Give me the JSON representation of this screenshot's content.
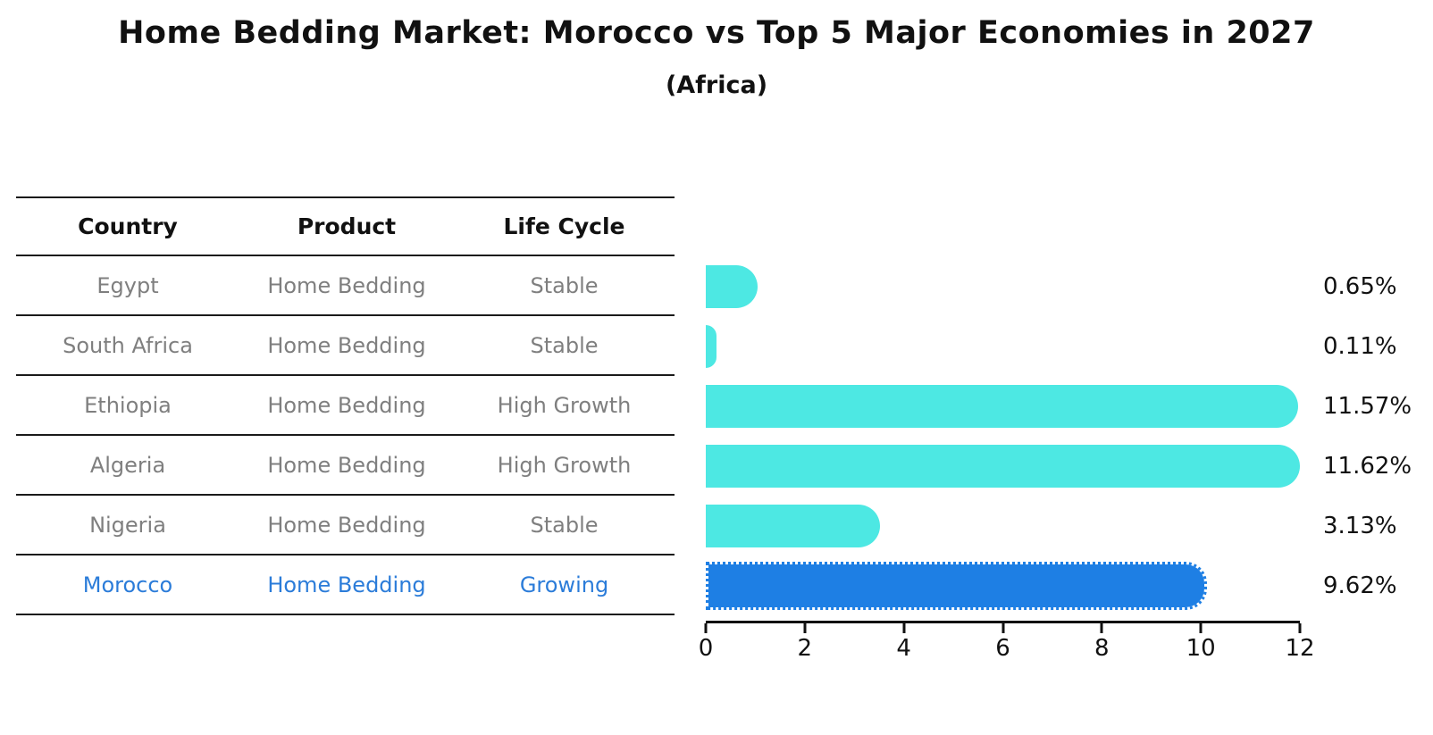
{
  "title": "Home Bedding Market: Morocco vs Top 5 Major Economies in 2027",
  "subtitle": "(Africa)",
  "table": {
    "headers": {
      "country": "Country",
      "product": "Product",
      "life_cycle": "Life Cycle"
    },
    "rows": [
      {
        "country": "Egypt",
        "product": "Home Bedding",
        "life_cycle": "Stable",
        "value_label": "0.65%"
      },
      {
        "country": "South Africa",
        "product": "Home Bedding",
        "life_cycle": "Stable",
        "value_label": "0.11%"
      },
      {
        "country": "Ethiopia",
        "product": "Home Bedding",
        "life_cycle": "High Growth",
        "value_label": "11.57%"
      },
      {
        "country": "Algeria",
        "product": "Home Bedding",
        "life_cycle": "High Growth",
        "value_label": "11.62%"
      },
      {
        "country": "Nigeria",
        "product": "Home Bedding",
        "life_cycle": "Stable",
        "value_label": "3.13%"
      },
      {
        "country": "Morocco",
        "product": "Home Bedding",
        "life_cycle": "Growing",
        "value_label": "9.62%"
      }
    ]
  },
  "chart_data": {
    "type": "bar",
    "orientation": "horizontal",
    "title": "Home Bedding Market: Morocco vs Top 5 Major Economies in 2027",
    "subtitle": "(Africa)",
    "categories": [
      "Egypt",
      "South Africa",
      "Ethiopia",
      "Algeria",
      "Nigeria",
      "Morocco"
    ],
    "values": [
      0.65,
      0.11,
      11.57,
      11.62,
      3.13,
      9.62
    ],
    "value_labels": [
      "0.65%",
      "0.11%",
      "11.57%",
      "11.62%",
      "3.13%",
      "9.62%"
    ],
    "xlabel": "",
    "ylabel": "",
    "xlim": [
      0,
      12
    ],
    "xticks": [
      0,
      2,
      4,
      6,
      8,
      10,
      12
    ],
    "grid": false,
    "legend": false,
    "highlight_index": 5,
    "highlight_category": "Morocco"
  },
  "colors": {
    "bar": "#4DE8E3",
    "highlight_bar": "#1E7FE4",
    "highlight_text": "#2B7CD9",
    "row_text": "#7f7f7f",
    "line": "#1a1a1a"
  }
}
